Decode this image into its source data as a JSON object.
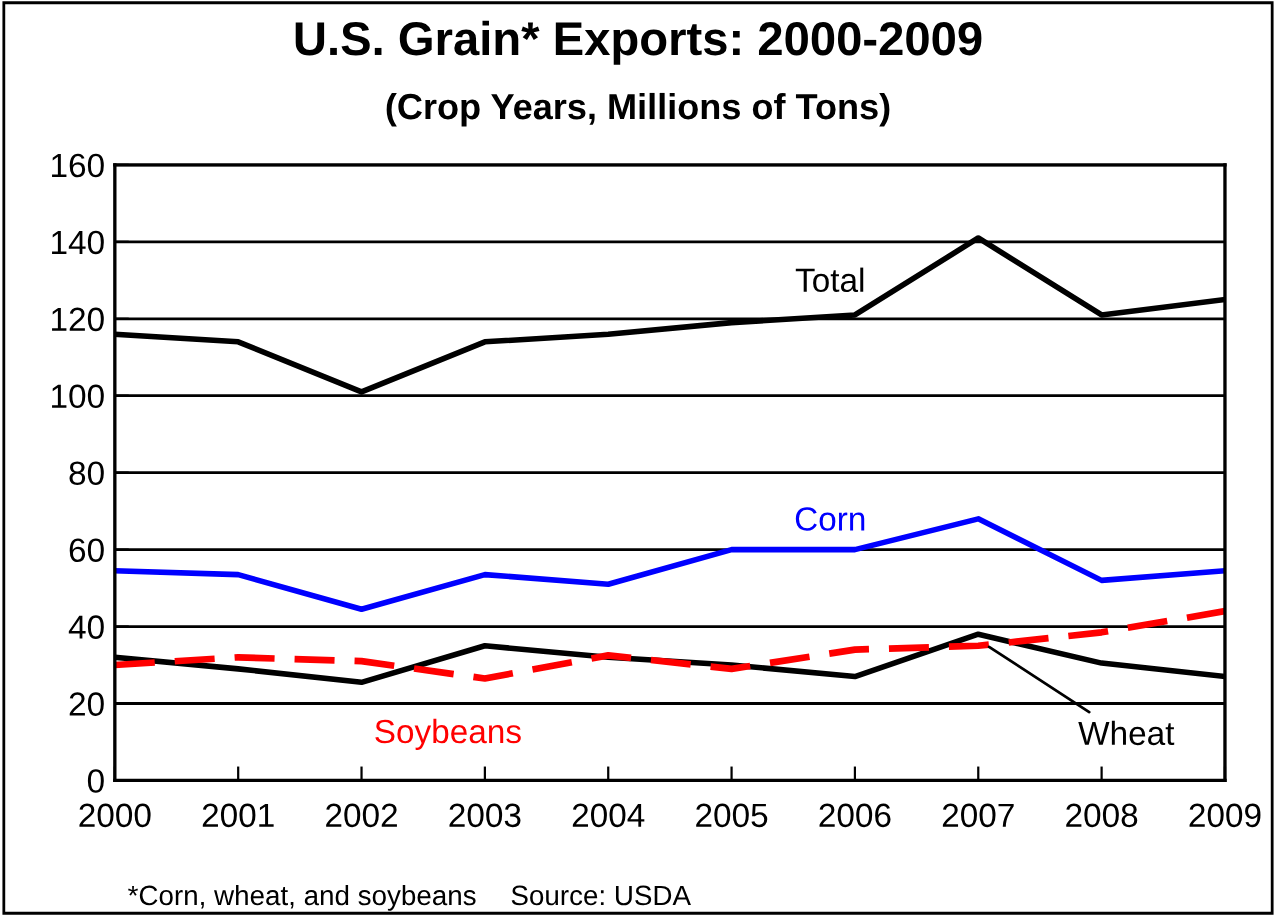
{
  "chart_data": {
    "type": "line",
    "title": "U.S. Grain* Exports: 2000-2009",
    "subtitle": "(Crop Years, Millions of Tons)",
    "x": [
      2000,
      2001,
      2002,
      2003,
      2004,
      2005,
      2006,
      2007,
      2008,
      2009
    ],
    "xlim": [
      2000,
      2009
    ],
    "xticks": [
      2000,
      2001,
      2002,
      2003,
      2004,
      2005,
      2006,
      2007,
      2008,
      2009
    ],
    "ylim": [
      0,
      160
    ],
    "yticks": [
      0,
      20,
      40,
      60,
      80,
      100,
      120,
      140,
      160
    ],
    "grid": "y",
    "legend": false,
    "marker": "none",
    "series": [
      {
        "name": "Total",
        "color": "#000000",
        "line_style": "solid",
        "values": [
          116,
          114,
          101,
          114,
          116,
          119,
          121,
          141,
          121,
          125
        ]
      },
      {
        "name": "Corn",
        "color": "#0000ff",
        "line_style": "solid",
        "values": [
          54.5,
          53.5,
          44.5,
          53.5,
          51,
          60,
          60,
          68,
          52,
          54.5
        ]
      },
      {
        "name": "Wheat",
        "color": "#000000",
        "line_style": "solid",
        "values": [
          32,
          29,
          25.5,
          35,
          32,
          30,
          27,
          38,
          30.5,
          27
        ]
      },
      {
        "name": "Soybeans",
        "color": "#ff0000",
        "line_style": "dashed",
        "values": [
          30,
          32,
          31,
          26.5,
          32.5,
          29,
          34,
          35,
          38.5,
          44
        ]
      }
    ],
    "annotations": [
      "*Corn, wheat, and soybeans",
      "Source: USDA"
    ]
  }
}
